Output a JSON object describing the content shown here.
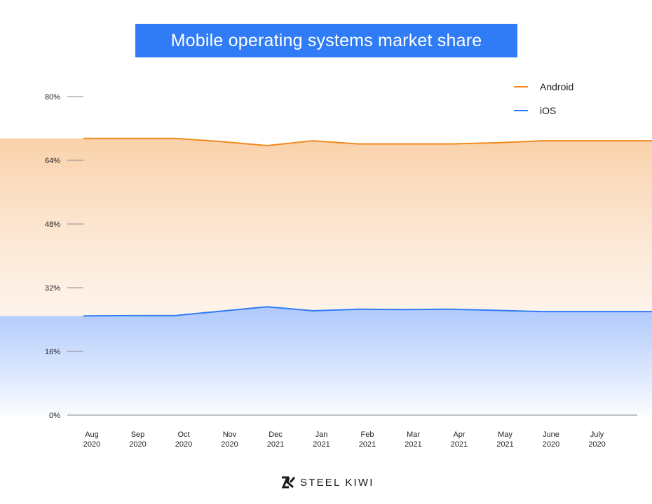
{
  "header": {
    "title": "Mobile operating systems market share"
  },
  "brand": {
    "name": "STEEL KIWI",
    "logo_icon": "sk-monogram-icon"
  },
  "chart_data": {
    "type": "area",
    "title": "Mobile operating systems market share",
    "xlabel": "",
    "ylabel": "",
    "ylim": [
      0,
      80
    ],
    "y_ticks": [
      "0%",
      "16%",
      "32%",
      "48%",
      "64%",
      "80%"
    ],
    "y_tick_values": [
      0,
      16,
      32,
      48,
      64,
      80
    ],
    "categories": [
      [
        "Aug",
        "2020"
      ],
      [
        "Sep",
        "2020"
      ],
      [
        "Oct",
        "2020"
      ],
      [
        "Nov",
        "2020"
      ],
      [
        "Dec",
        "2021"
      ],
      [
        "Jan",
        "2021"
      ],
      [
        "Feb",
        "2021"
      ],
      [
        "Mar",
        "2021"
      ],
      [
        "Apr",
        "2021"
      ],
      [
        "May",
        "2021"
      ],
      [
        "June",
        "2020"
      ],
      [
        "July",
        "2020"
      ]
    ],
    "series": [
      {
        "name": "Android",
        "color": "#f28a1e",
        "fill": "#fbd7b3",
        "values": [
          69.5,
          69.5,
          69.5,
          68.7,
          67.7,
          68.9,
          68.1,
          68.1,
          68.1,
          68.4,
          68.9,
          68.9
        ]
      },
      {
        "name": "iOS",
        "color": "#2f7cf6",
        "fill": "#b3cdfb",
        "values": [
          24.9,
          25.0,
          25.0,
          26.1,
          27.2,
          26.2,
          26.6,
          26.5,
          26.6,
          26.3,
          26.0,
          26.0
        ]
      }
    ],
    "legend": "top-right",
    "grid": false
  }
}
